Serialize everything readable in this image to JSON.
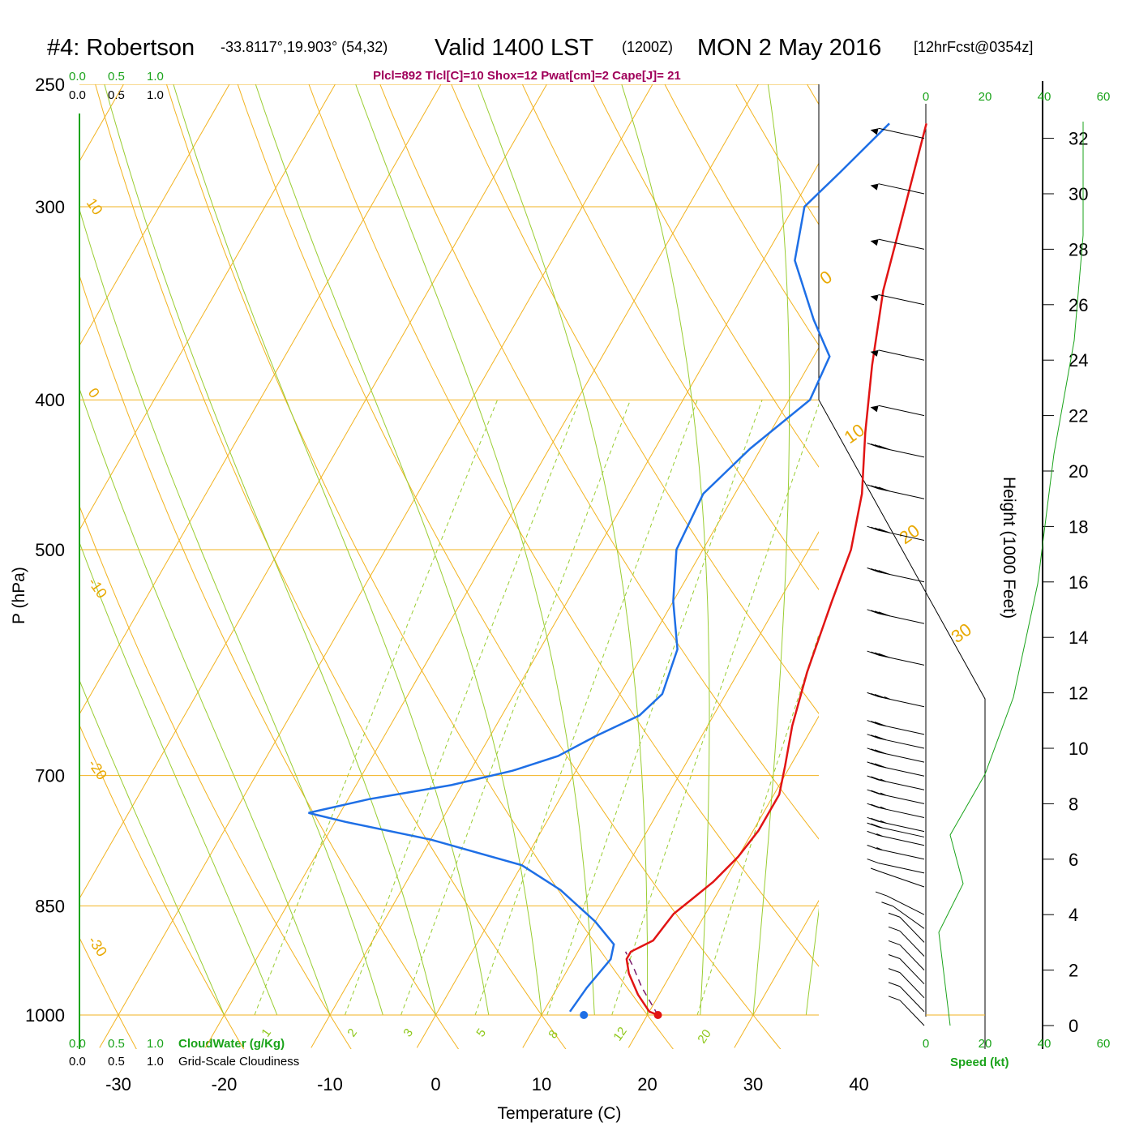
{
  "title": {
    "station": "#4: Robertson",
    "coords": "-33.8117°,19.903° (54,32)",
    "valid": "Valid 1400 LST",
    "utc": "(1200Z)",
    "date": "MON 2 May 2016",
    "forecast": "[12hrFcst@0354z]"
  },
  "info_line": "Plcl=892 Tlcl[C]=10 Shox=12 Pwat[cm]=2 Cape[J]= 21",
  "top_scales": {
    "green": [
      "0.0",
      "0.5",
      "1.0"
    ],
    "black": [
      "0.0",
      "0.5",
      "1.0"
    ]
  },
  "bottom_scales": {
    "green": [
      "0.0",
      "0.5",
      "1.0"
    ],
    "green_label": "CloudWater (g/Kg)",
    "black": [
      "0.0",
      "0.5",
      "1.0"
    ],
    "black_label": "Grid-Scale Cloudiness"
  },
  "colors": {
    "isotherm": "#f2b320",
    "dry_adiabat": "#f2b320",
    "moist_adiabat": "#9acd32",
    "mixing_ratio": "#9acd32",
    "temperature": "#e11414",
    "dewpoint": "#1e6fe6",
    "parcel": "#7a1a6a",
    "scale_green": "#1aa31a",
    "info": "#a0005a"
  },
  "chart_data": {
    "type": "line",
    "xlabel": "Temperature (C)",
    "ylabel": "P (hPa)",
    "y2label": "Height (1000 Feet)",
    "pressure_ticks": [
      250,
      300,
      400,
      500,
      700,
      850,
      1000
    ],
    "temperature_ticks": [
      -30,
      -20,
      -10,
      0,
      10,
      20,
      30,
      40
    ],
    "height_ticks": [
      0,
      2,
      4,
      6,
      8,
      10,
      12,
      14,
      16,
      18,
      20,
      22,
      24,
      26,
      28,
      30,
      32
    ],
    "wind_speed_ticks": [
      0,
      20,
      40,
      60
    ],
    "wind_speed_label": "Speed (kt)",
    "dry_adiabat_labels": [
      "10",
      "0",
      "-10",
      "-20",
      "-30"
    ],
    "moist_adiabat_labels": [
      "0",
      "10",
      "20",
      "30"
    ],
    "mixing_ratio_labels": [
      "1",
      "2",
      "3",
      "5",
      "8",
      "12",
      "20"
    ],
    "series": [
      {
        "name": "Temperature",
        "points": [
          [
            21,
            1000
          ],
          [
            20,
            995
          ],
          [
            18,
            970
          ],
          [
            16,
            940
          ],
          [
            15,
            920
          ],
          [
            15,
            910
          ],
          [
            16.5,
            895
          ],
          [
            17,
            860
          ],
          [
            18,
            840
          ],
          [
            19,
            820
          ],
          [
            20,
            790
          ],
          [
            20.5,
            760
          ],
          [
            20.5,
            720
          ],
          [
            19.5,
            690
          ],
          [
            18,
            650
          ],
          [
            16.5,
            600
          ],
          [
            15,
            540
          ],
          [
            14,
            500
          ],
          [
            12,
            460
          ],
          [
            9,
            420
          ],
          [
            6,
            380
          ],
          [
            3,
            340
          ],
          [
            0.5,
            300
          ],
          [
            -2,
            265
          ]
        ]
      },
      {
        "name": "Dewpoint",
        "points": [
          [
            12.5,
            995
          ],
          [
            12.8,
            960
          ],
          [
            13.5,
            920
          ],
          [
            13,
            900
          ],
          [
            10,
            870
          ],
          [
            5,
            830
          ],
          [
            0,
            800
          ],
          [
            -10,
            770
          ],
          [
            -19,
            750
          ],
          [
            -23,
            740
          ],
          [
            -18,
            725
          ],
          [
            -11,
            710
          ],
          [
            -6,
            695
          ],
          [
            -2.5,
            680
          ],
          [
            0,
            660
          ],
          [
            3,
            640
          ],
          [
            4,
            620
          ],
          [
            3,
            580
          ],
          [
            0,
            540
          ],
          [
            -2.5,
            500
          ],
          [
            -3,
            460
          ],
          [
            -1,
            430
          ],
          [
            2,
            400
          ],
          [
            1.5,
            375
          ],
          [
            -2,
            355
          ],
          [
            -7,
            325
          ],
          [
            -9,
            300
          ],
          [
            -7.5,
            285
          ],
          [
            -5.5,
            265
          ]
        ]
      },
      {
        "name": "Parcel",
        "points": [
          [
            21,
            1000
          ],
          [
            18,
            960
          ],
          [
            16,
            930
          ],
          [
            14.5,
            910
          ]
        ]
      }
    ],
    "surface": {
      "temperature": 21,
      "dewpoint": 14,
      "pressure": 1000
    },
    "height_profile": [
      [
        20,
        0
      ],
      [
        20,
        2
      ],
      [
        20,
        4
      ],
      [
        20,
        6
      ],
      [
        20,
        8
      ],
      [
        20,
        10
      ],
      [
        20,
        12
      ],
      [
        20,
        13
      ]
    ],
    "wind_barbs": [
      {
        "height": 32,
        "direction": 290,
        "speed": 50
      },
      {
        "height": 30,
        "direction": 290,
        "speed": 50
      },
      {
        "height": 28,
        "direction": 290,
        "speed": 50
      },
      {
        "height": 26,
        "direction": 290,
        "speed": 50
      },
      {
        "height": 24,
        "direction": 290,
        "speed": 50
      },
      {
        "height": 22,
        "direction": 290,
        "speed": 50
      },
      {
        "height": 20.5,
        "direction": 290,
        "speed": 40
      },
      {
        "height": 19,
        "direction": 290,
        "speed": 40
      },
      {
        "height": 17.5,
        "direction": 290,
        "speed": 40
      },
      {
        "height": 16,
        "direction": 290,
        "speed": 40
      },
      {
        "height": 14.5,
        "direction": 290,
        "speed": 40
      },
      {
        "height": 13,
        "direction": 290,
        "speed": 40
      },
      {
        "height": 11.5,
        "direction": 290,
        "speed": 35
      },
      {
        "height": 10.5,
        "direction": 290,
        "speed": 30
      },
      {
        "height": 10,
        "direction": 290,
        "speed": 30
      },
      {
        "height": 9.5,
        "direction": 290,
        "speed": 30
      },
      {
        "height": 9,
        "direction": 290,
        "speed": 30
      },
      {
        "height": 8.5,
        "direction": 290,
        "speed": 25
      },
      {
        "height": 8,
        "direction": 290,
        "speed": 25
      },
      {
        "height": 7.5,
        "direction": 290,
        "speed": 25
      },
      {
        "height": 7,
        "direction": 290,
        "speed": 25
      },
      {
        "height": 6.8,
        "direction": 290,
        "speed": 20
      },
      {
        "height": 6.5,
        "direction": 290,
        "speed": 15
      },
      {
        "height": 6,
        "direction": 290,
        "speed": 15
      },
      {
        "height": 5.5,
        "direction": 290,
        "speed": 10
      },
      {
        "height": 5,
        "direction": 300,
        "speed": 10
      },
      {
        "height": 4,
        "direction": 310,
        "speed": 10
      },
      {
        "height": 3.5,
        "direction": 320,
        "speed": 10
      },
      {
        "height": 3,
        "direction": 330,
        "speed": 10
      },
      {
        "height": 2.5,
        "direction": 330,
        "speed": 10
      },
      {
        "height": 2,
        "direction": 330,
        "speed": 10
      },
      {
        "height": 1.5,
        "direction": 330,
        "speed": 10
      },
      {
        "height": 1,
        "direction": 330,
        "speed": 10
      },
      {
        "height": 0.5,
        "direction": 330,
        "speed": 10
      },
      {
        "height": 0,
        "direction": 330,
        "speed": 10
      }
    ]
  }
}
